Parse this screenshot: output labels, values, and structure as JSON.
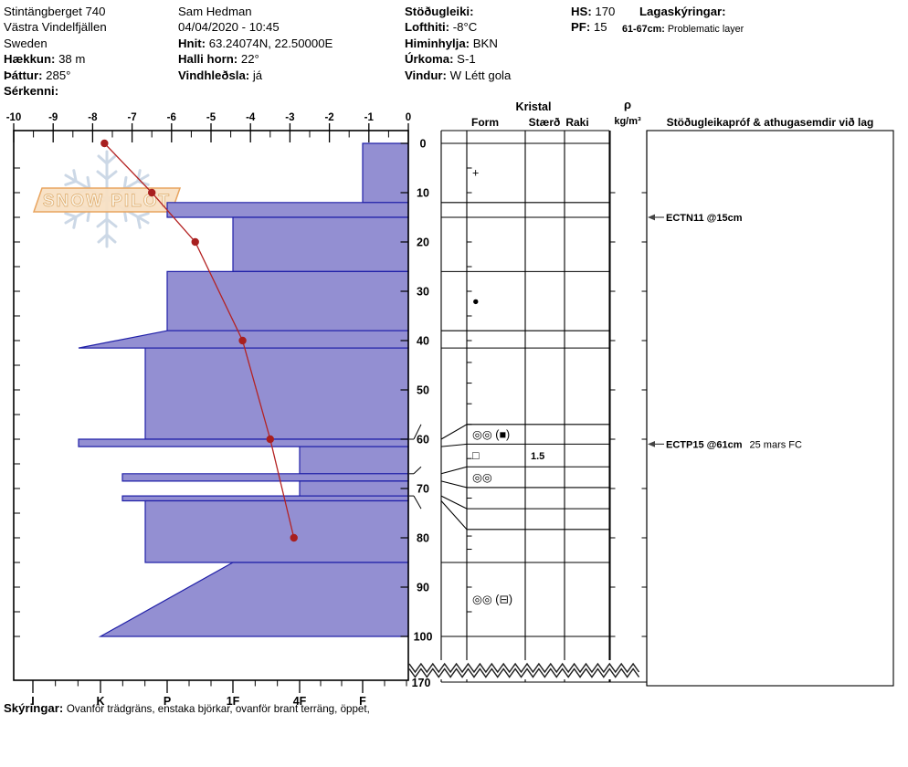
{
  "header": {
    "location": {
      "name": "Stintängberget 740",
      "region": "Västra Vindelfjällen",
      "country": "Sweden",
      "elevation_label": "Hækkun:",
      "elevation": "38 m",
      "aspect_label": "Þáttur:",
      "aspect": "285°",
      "special_label": "Sérkenni:",
      "special": ""
    },
    "observer": {
      "name": "Sam Hedman",
      "datetime": "04/04/2020 - 10:45",
      "coords_label": "Hnit:",
      "coords": "63.24074N, 22.50000E",
      "slope_label": "Halli horn:",
      "slope": "22°",
      "windload_label": "Vindhleðsla:",
      "windload": "já"
    },
    "conditions": {
      "stability_label": "Stöðugleiki:",
      "stability": "",
      "airtemp_label": "Lofthiti:",
      "airtemp": "-8°C",
      "sky_label": "Himinhylja:",
      "sky": "BKN",
      "precip_label": "Úrkoma:",
      "precip": "S-1",
      "wind_label": "Vindur:",
      "wind": "W Létt gola"
    },
    "snowpack": {
      "hs_label": "HS:",
      "hs": "170",
      "pf_label": "PF:",
      "pf": "15"
    },
    "layer_notes": {
      "label": "Lagaskýringar:",
      "range": "61-67cm:",
      "text": "Problematic layer"
    }
  },
  "watermark": {
    "line": "SNOW PILOT"
  },
  "footer": {
    "label": "Skýringar:",
    "text": "Ovanför trädgräns, enstaka björkar, ovanför brant terräng, öppet,"
  },
  "chart_data": {
    "type": "snow-profile",
    "temperature_axis": {
      "unit": "°C",
      "min": -10,
      "max": 0,
      "labels": [
        "-10",
        "-9",
        "-8",
        "-7",
        "-6",
        "-5",
        "-4",
        "-3",
        "-2",
        "-1",
        "0"
      ]
    },
    "depth_axis": {
      "unit": "cm",
      "labels": [
        0,
        10,
        20,
        30,
        40,
        50,
        60,
        70,
        80,
        90,
        100
      ],
      "break_label": "170"
    },
    "hardness_axis": {
      "labels": [
        "I",
        "K",
        "P",
        "1F",
        "4F",
        "F"
      ]
    },
    "temperature_profile": [
      {
        "depth_cm": 0,
        "temp_c": -7.7
      },
      {
        "depth_cm": 10,
        "temp_c": -6.5
      },
      {
        "depth_cm": 20,
        "temp_c": -5.4
      },
      {
        "depth_cm": 40,
        "temp_c": -4.2
      },
      {
        "depth_cm": 60,
        "temp_c": -3.5
      },
      {
        "depth_cm": 80,
        "temp_c": -2.9
      }
    ],
    "layers": [
      {
        "top_cm": 0,
        "bottom_cm": 12,
        "hardness_top": "F",
        "hardness_bottom": "F"
      },
      {
        "top_cm": 12,
        "bottom_cm": 15,
        "hardness_top": "P",
        "hardness_bottom": "P"
      },
      {
        "top_cm": 15,
        "bottom_cm": 26,
        "hardness_top": "1F",
        "hardness_bottom": "1F"
      },
      {
        "top_cm": 26,
        "bottom_cm": 38,
        "hardness_top": "P",
        "hardness_bottom": "P"
      },
      {
        "top_cm": 38,
        "bottom_cm": 41.5,
        "hardness_top": "P",
        "hardness_bottom": "K+"
      },
      {
        "top_cm": 41.5,
        "bottom_cm": 60,
        "hardness_top": "P+",
        "hardness_bottom": "P+"
      },
      {
        "top_cm": 60,
        "bottom_cm": 61.5,
        "hardness_top": "K+",
        "hardness_bottom": "K+"
      },
      {
        "top_cm": 61.5,
        "bottom_cm": 67,
        "hardness_top": "4F",
        "hardness_bottom": "4F"
      },
      {
        "top_cm": 67,
        "bottom_cm": 68.5,
        "hardness_top": "K-",
        "hardness_bottom": "K-"
      },
      {
        "top_cm": 68.5,
        "bottom_cm": 71.5,
        "hardness_top": "4F",
        "hardness_bottom": "4F"
      },
      {
        "top_cm": 71.5,
        "bottom_cm": 72.5,
        "hardness_top": "K-",
        "hardness_bottom": "K-"
      },
      {
        "top_cm": 72.5,
        "bottom_cm": 85,
        "hardness_top": "P+",
        "hardness_bottom": "P+"
      },
      {
        "top_cm": 85,
        "bottom_cm": 100,
        "hardness_top": "1F",
        "hardness_bottom": "K"
      }
    ],
    "grain_rows": [
      {
        "from_cm": 0,
        "to_cm": 12,
        "form": "+",
        "size": ""
      },
      {
        "from_cm": 26,
        "to_cm": 38,
        "form": "●",
        "size": ""
      },
      {
        "from_cm": 60,
        "to_cm": 61.5,
        "form": "◎◎ (■)",
        "size": ""
      },
      {
        "from_cm": 61.5,
        "to_cm": 67,
        "form": "□",
        "size": "1.5"
      },
      {
        "from_cm": 67,
        "to_cm": 68.5,
        "form": "◎◎",
        "size": ""
      },
      {
        "from_cm": 85,
        "to_cm": 100,
        "form": "◎◎ (⊟)",
        "size": ""
      }
    ],
    "table_headers": {
      "group": "Kristal",
      "form": "Form",
      "size": "Stærð",
      "wetness": "Raki",
      "density_symbol": "ρ",
      "density_unit": "kg/m³",
      "stability": "Stöðugleikapróf & athugasemdir við lag"
    },
    "tests": [
      {
        "depth_cm": 15,
        "label": "ECTN11 @15cm",
        "note": ""
      },
      {
        "depth_cm": 61,
        "label": "ECTP15 @61cm",
        "note": "25 mars FC"
      }
    ],
    "colors": {
      "layer_fill": "#938fd2",
      "layer_border": "#2020a8",
      "temp_line": "#b42222",
      "temp_dot": "#a81f1f"
    }
  }
}
